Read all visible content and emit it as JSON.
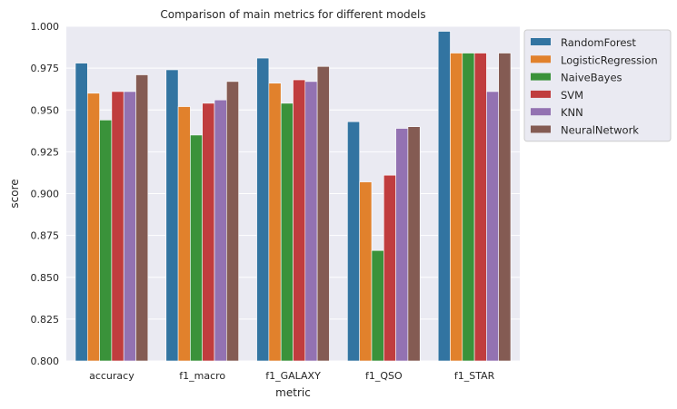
{
  "chart_data": {
    "type": "bar",
    "title": "Comparison of main metrics for different models",
    "xlabel": "metric",
    "ylabel": "score",
    "ylim": [
      0.8,
      1.0
    ],
    "yticks": [
      "0.800",
      "0.825",
      "0.850",
      "0.875",
      "0.900",
      "0.925",
      "0.950",
      "0.975",
      "1.000"
    ],
    "categories": [
      "accuracy",
      "f1_macro",
      "f1_GALAXY",
      "f1_QSO",
      "f1_STAR"
    ],
    "grid": true,
    "legend_position": "outside-upper-right",
    "series": [
      {
        "name": "RandomForest",
        "color": "#3274a1",
        "values": [
          0.978,
          0.974,
          0.981,
          0.943,
          0.997
        ]
      },
      {
        "name": "LogisticRegression",
        "color": "#e1812c",
        "values": [
          0.96,
          0.952,
          0.966,
          0.907,
          0.984
        ]
      },
      {
        "name": "NaiveBayes",
        "color": "#3a923a",
        "values": [
          0.944,
          0.935,
          0.954,
          0.866,
          0.984
        ]
      },
      {
        "name": "SVM",
        "color": "#c03d3e",
        "values": [
          0.961,
          0.954,
          0.968,
          0.911,
          0.984
        ]
      },
      {
        "name": "KNN",
        "color": "#9372b2",
        "values": [
          0.961,
          0.956,
          0.967,
          0.939,
          0.961
        ]
      },
      {
        "name": "NeuralNetwork",
        "color": "#845b53",
        "values": [
          0.971,
          0.967,
          0.976,
          0.94,
          0.984
        ]
      }
    ]
  }
}
